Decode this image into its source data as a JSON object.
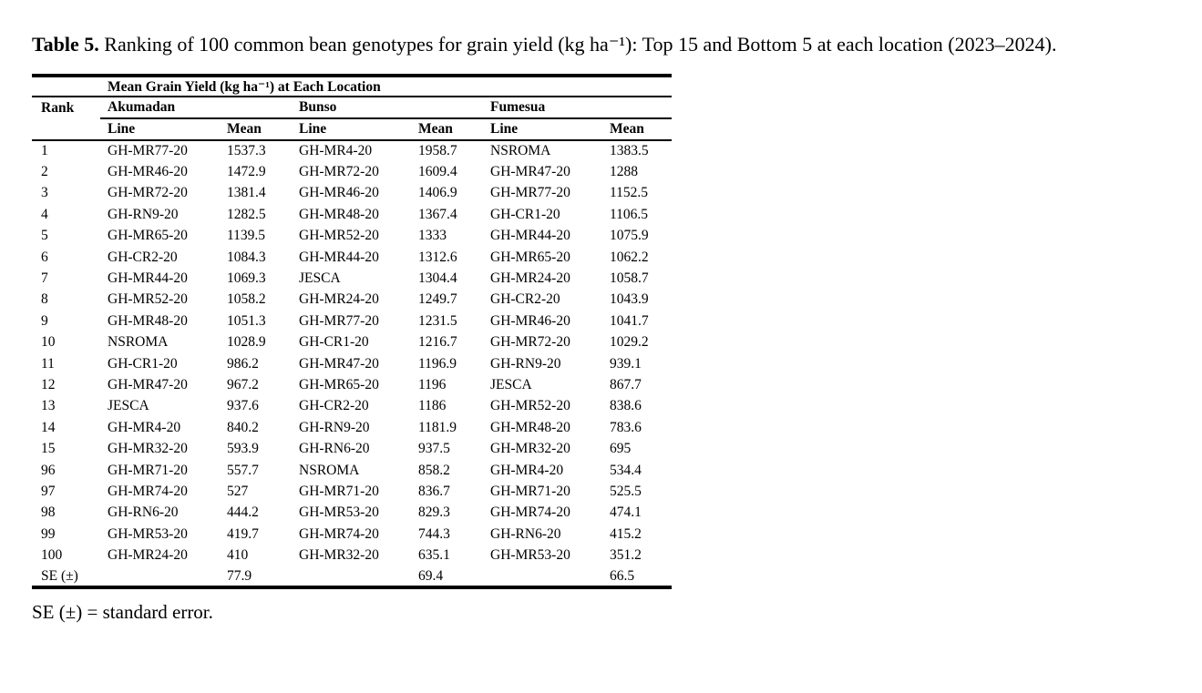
{
  "caption": {
    "label": "Table 5.",
    "body": "Ranking of 100 common bean genotypes for grain yield (kg ha⁻¹): Top 15 and Bottom 5 at each",
    "tail": "location (2023–2024)."
  },
  "table": {
    "spanning_header": "Mean Grain Yield (kg ha⁻¹) at Each Location",
    "rank_header": "Rank",
    "locations": [
      "Akumadan",
      "Bunso",
      "Fumesua"
    ],
    "sub_headers": [
      "Line",
      "Mean"
    ],
    "rows": [
      [
        "1",
        "GH-MR77-20",
        "1537.3",
        "GH-MR4-20",
        "1958.7",
        "NSROMA",
        "1383.5"
      ],
      [
        "2",
        "GH-MR46-20",
        "1472.9",
        "GH-MR72-20",
        "1609.4",
        "GH-MR47-20",
        "1288"
      ],
      [
        "3",
        "GH-MR72-20",
        "1381.4",
        "GH-MR46-20",
        "1406.9",
        "GH-MR77-20",
        "1152.5"
      ],
      [
        "4",
        "GH-RN9-20",
        "1282.5",
        "GH-MR48-20",
        "1367.4",
        "GH-CR1-20",
        "1106.5"
      ],
      [
        "5",
        "GH-MR65-20",
        "1139.5",
        "GH-MR52-20",
        "1333",
        "GH-MR44-20",
        "1075.9"
      ],
      [
        "6",
        "GH-CR2-20",
        "1084.3",
        "GH-MR44-20",
        "1312.6",
        "GH-MR65-20",
        "1062.2"
      ],
      [
        "7",
        "GH-MR44-20",
        "1069.3",
        "JESCA",
        "1304.4",
        "GH-MR24-20",
        "1058.7"
      ],
      [
        "8",
        "GH-MR52-20",
        "1058.2",
        "GH-MR24-20",
        "1249.7",
        "GH-CR2-20",
        "1043.9"
      ],
      [
        "9",
        "GH-MR48-20",
        "1051.3",
        "GH-MR77-20",
        "1231.5",
        "GH-MR46-20",
        "1041.7"
      ],
      [
        "10",
        "NSROMA",
        "1028.9",
        "GH-CR1-20",
        "1216.7",
        "GH-MR72-20",
        "1029.2"
      ],
      [
        "11",
        "GH-CR1-20",
        "986.2",
        "GH-MR47-20",
        "1196.9",
        "GH-RN9-20",
        "939.1"
      ],
      [
        "12",
        "GH-MR47-20",
        "967.2",
        "GH-MR65-20",
        "1196",
        "JESCA",
        "867.7"
      ],
      [
        "13",
        "JESCA",
        "937.6",
        "GH-CR2-20",
        "1186",
        "GH-MR52-20",
        "838.6"
      ],
      [
        "14",
        "GH-MR4-20",
        "840.2",
        "GH-RN9-20",
        "1181.9",
        "GH-MR48-20",
        "783.6"
      ],
      [
        "15",
        "GH-MR32-20",
        "593.9",
        "GH-RN6-20",
        "937.5",
        "GH-MR32-20",
        "695"
      ],
      [
        "96",
        "GH-MR71-20",
        "557.7",
        "NSROMA",
        "858.2",
        "GH-MR4-20",
        "534.4"
      ],
      [
        "97",
        "GH-MR74-20",
        "527",
        "GH-MR71-20",
        "836.7",
        "GH-MR71-20",
        "525.5"
      ],
      [
        "98",
        "GH-RN6-20",
        "444.2",
        "GH-MR53-20",
        "829.3",
        "GH-MR74-20",
        "474.1"
      ],
      [
        "99",
        "GH-MR53-20",
        "419.7",
        "GH-MR74-20",
        "744.3",
        "GH-RN6-20",
        "415.2"
      ],
      [
        "100",
        "GH-MR24-20",
        "410",
        "GH-MR32-20",
        "635.1",
        "GH-MR53-20",
        "351.2"
      ],
      [
        "SE (±)",
        "",
        "77.9",
        "",
        "69.4",
        "",
        "66.5"
      ]
    ]
  },
  "footnote": "SE (±) = standard error.",
  "colors": {
    "text": "#000000",
    "background": "#ffffff",
    "rule": "#000000"
  }
}
